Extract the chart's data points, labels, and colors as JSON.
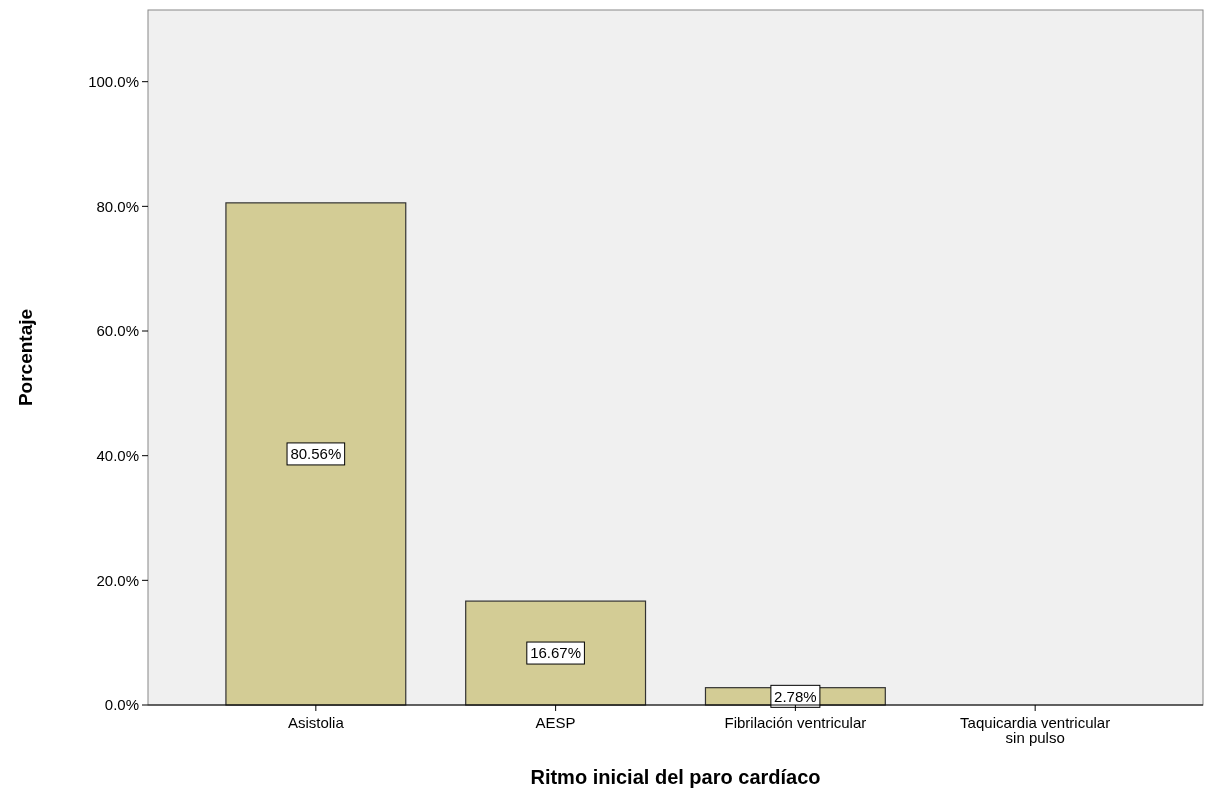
{
  "chart_data": {
    "type": "bar",
    "xlabel": "Ritmo inicial del paro cardíaco",
    "ylabel": "Porcentaje",
    "categories": [
      "Asistolia",
      "AESP",
      "Fibrilación ventricular",
      "Taquicardia ventricular\nsin pulso"
    ],
    "values": [
      80.56,
      16.67,
      2.78,
      0
    ],
    "value_labels": [
      "80.56%",
      "16.67%",
      "2.78%",
      null
    ],
    "color": "#d3cc95",
    "ylim": [
      0,
      111.5
    ],
    "yticks": [
      {
        "value": 0,
        "label": "0.0%"
      },
      {
        "value": 20,
        "label": "20.0%"
      },
      {
        "value": 40,
        "label": "40.0%"
      },
      {
        "value": 60,
        "label": "60.0%"
      },
      {
        "value": 80,
        "label": "80.0%"
      },
      {
        "value": 100,
        "label": "100.0%"
      }
    ],
    "grid": false
  }
}
